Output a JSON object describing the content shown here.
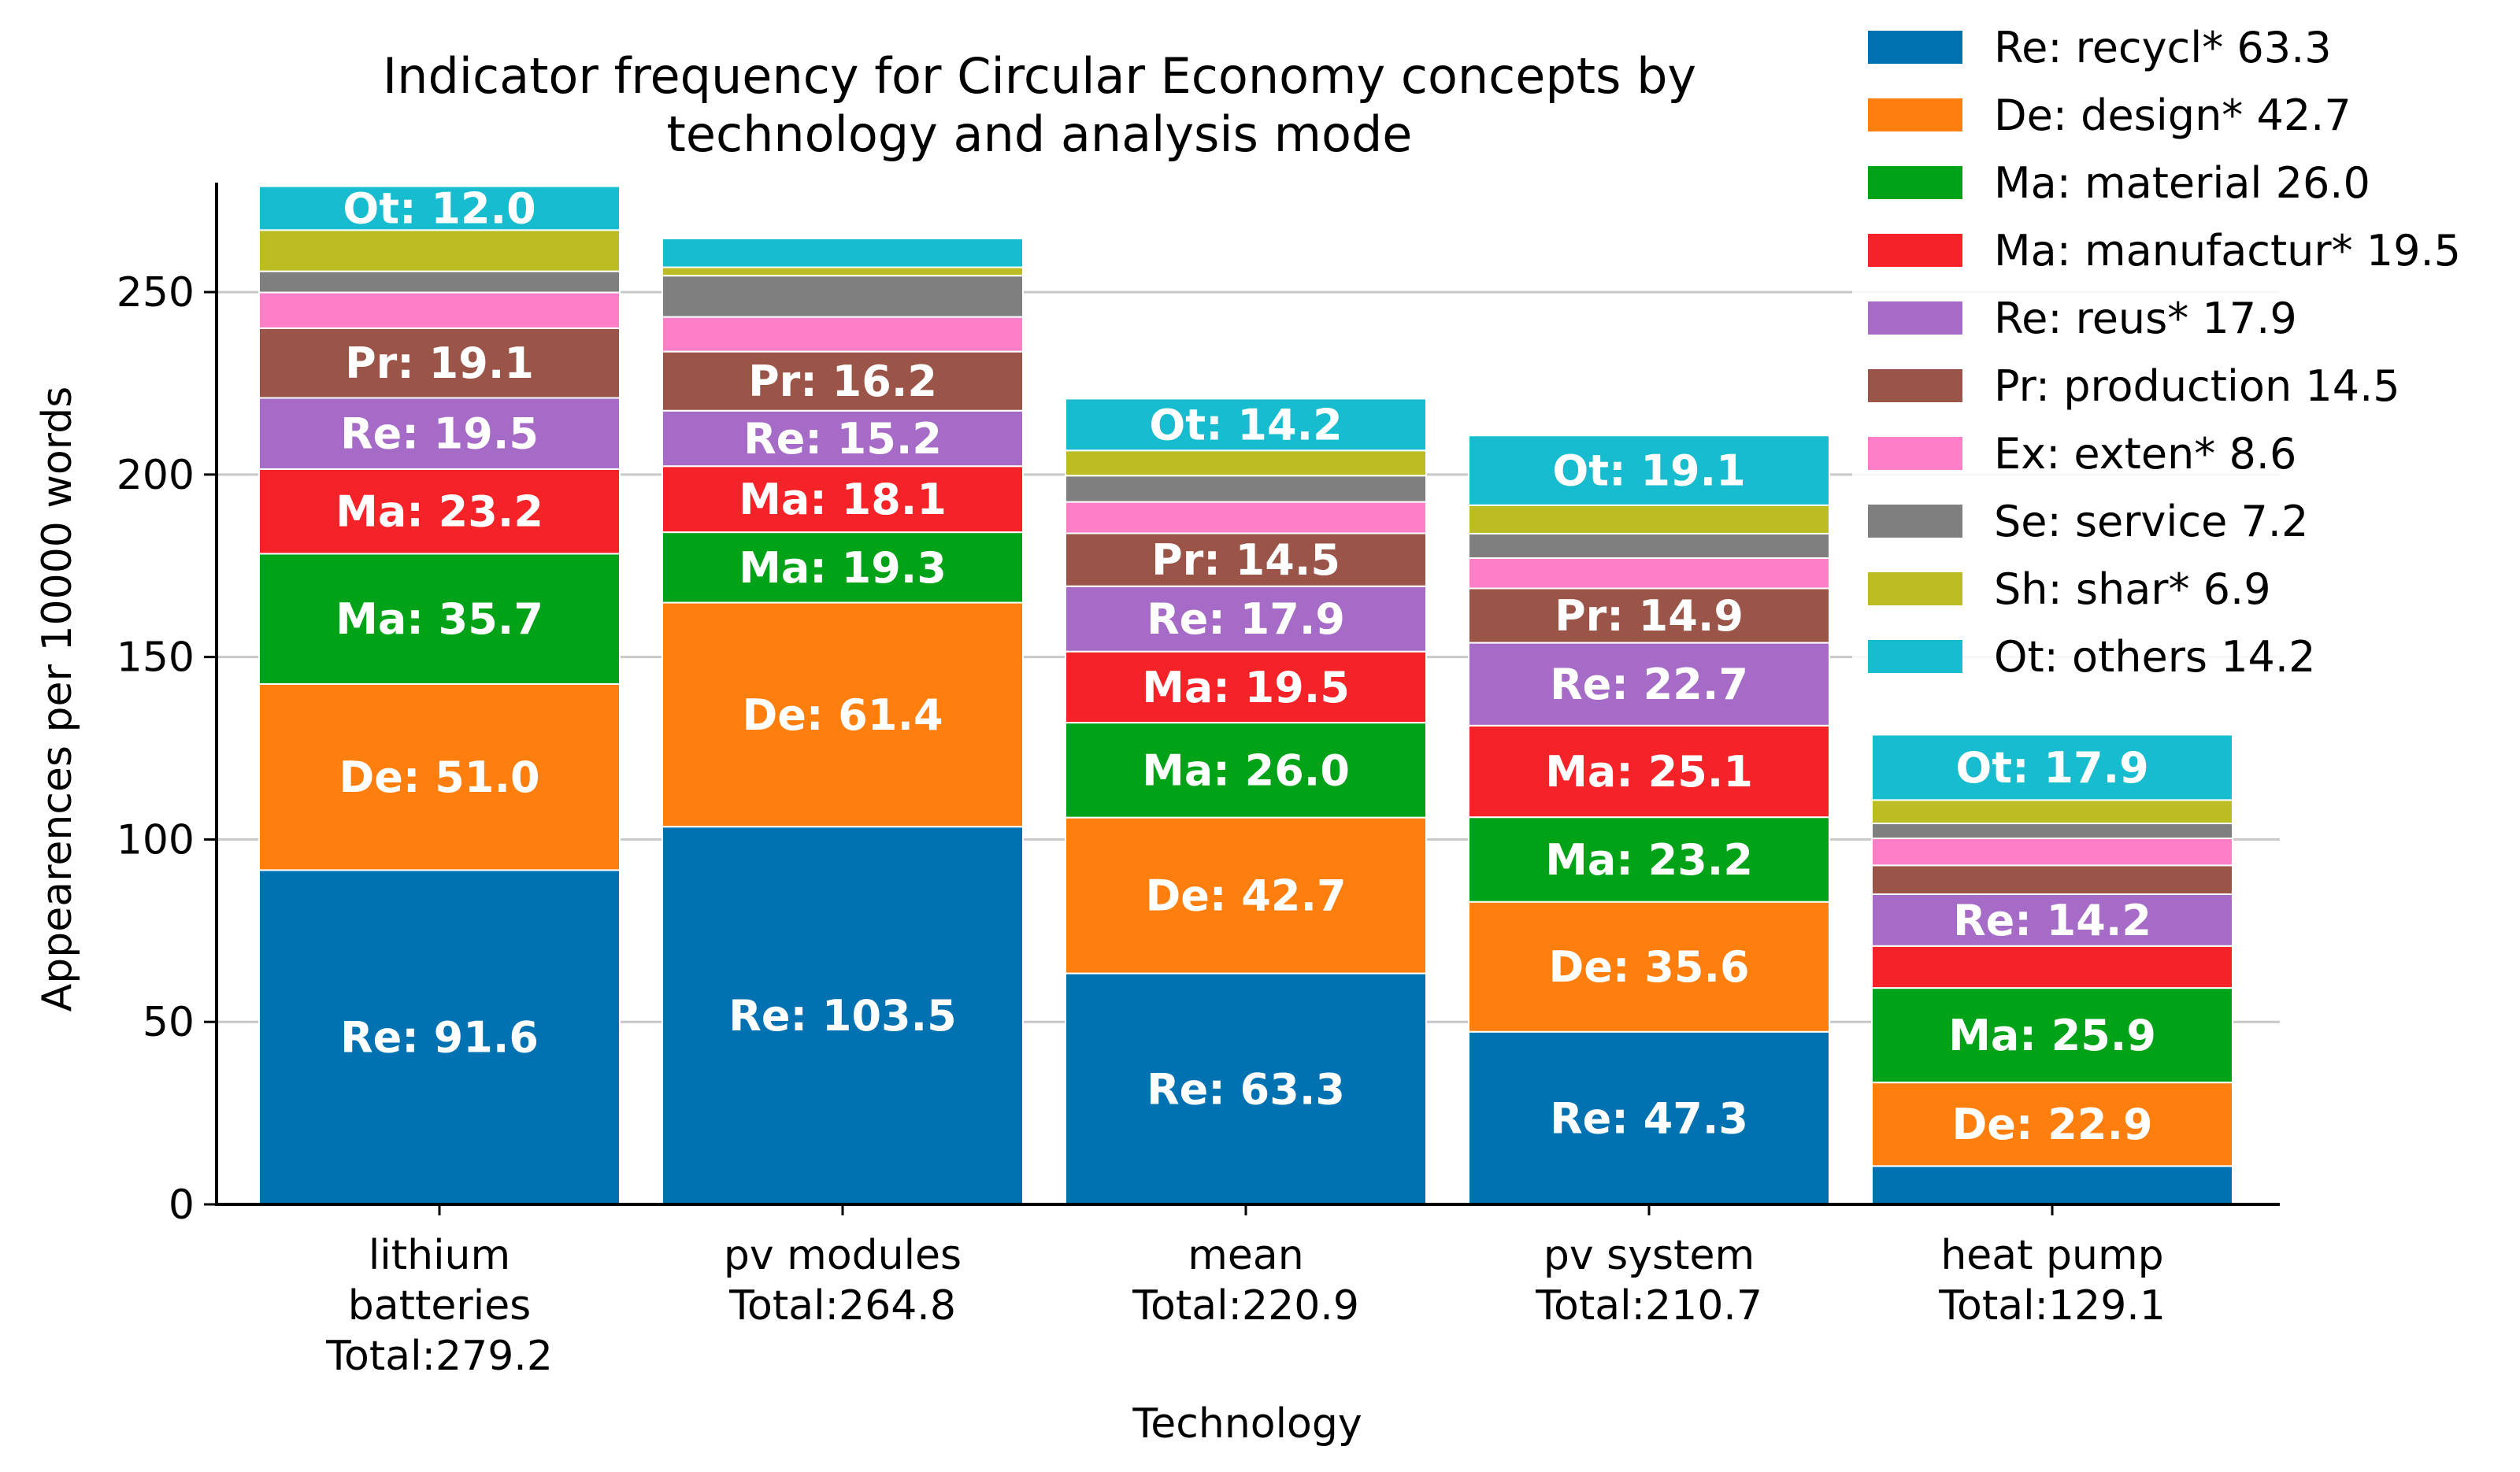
{
  "chart_data": {
    "type": "bar",
    "stacked": true,
    "title_lines": [
      "Indicator frequency for Circular Economy concepts by",
      "technology and analysis mode"
    ],
    "xlabel": "Technology",
    "ylabel": "Appearences per 10000 words",
    "ylim": [
      0,
      280
    ],
    "yticks": [
      0,
      50,
      100,
      150,
      200,
      250
    ],
    "grid": "horizontal",
    "legend_position": "top-right",
    "categories": [
      {
        "name_lines": [
          "lithium",
          "batteries"
        ],
        "total": "Total:279.2"
      },
      {
        "name_lines": [
          "pv modules"
        ],
        "total": "Total:264.8"
      },
      {
        "name_lines": [
          "mean"
        ],
        "total": "Total:220.9"
      },
      {
        "name_lines": [
          "pv system"
        ],
        "total": "Total:210.7"
      },
      {
        "name_lines": [
          "heat pump"
        ],
        "total": "Total:129.1"
      }
    ],
    "series": [
      {
        "abbr": "Re",
        "legend": "Re: recycl* 63.3",
        "color": "#0072b2",
        "values": [
          91.6,
          103.5,
          63.3,
          47.3,
          10.5
        ],
        "labels": [
          "Re: 91.6",
          "Re: 103.5",
          "Re: 63.3",
          "Re: 47.3",
          ""
        ]
      },
      {
        "abbr": "De",
        "legend": "De: design* 42.7",
        "color": "#ff7f0e",
        "values": [
          51.0,
          61.4,
          42.7,
          35.6,
          22.9
        ],
        "labels": [
          "De: 51.0",
          "De: 61.4",
          "De: 42.7",
          "De: 35.6",
          "De: 22.9"
        ]
      },
      {
        "abbr": "Ma",
        "legend": "Ma: material 26.0",
        "color": "#00a318",
        "values": [
          35.7,
          19.3,
          26.0,
          23.2,
          25.9
        ],
        "labels": [
          "Ma: 35.7",
          "Ma: 19.3",
          "Ma: 26.0",
          "Ma: 23.2",
          "Ma: 25.9"
        ]
      },
      {
        "abbr": "Ma",
        "legend": "Ma: manufactur* 19.5",
        "color": "#f52328",
        "values": [
          23.2,
          18.1,
          19.5,
          25.1,
          11.5
        ],
        "labels": [
          "Ma: 23.2",
          "Ma: 18.1",
          "Ma: 19.5",
          "Ma: 25.1",
          ""
        ]
      },
      {
        "abbr": "Re",
        "legend": "Re: reus* 17.9",
        "color": "#a66bc6",
        "values": [
          19.5,
          15.2,
          17.9,
          22.7,
          14.2
        ],
        "labels": [
          "Re: 19.5",
          "Re: 15.2",
          "Re: 17.9",
          "Re: 22.7",
          "Re: 14.2"
        ]
      },
      {
        "abbr": "Pr",
        "legend": "Pr: production 14.5",
        "color": "#9a5548",
        "values": [
          19.1,
          16.2,
          14.5,
          14.9,
          7.9
        ],
        "labels": [
          "Pr: 19.1",
          "Pr: 16.2",
          "Pr: 14.5",
          "Pr: 14.9",
          ""
        ]
      },
      {
        "abbr": "Ex",
        "legend": "Ex: exten* 8.6",
        "color": "#ff7ec8",
        "values": [
          9.8,
          9.5,
          8.6,
          8.3,
          7.4
        ],
        "labels": [
          "",
          "",
          "",
          "",
          ""
        ]
      },
      {
        "abbr": "Se",
        "legend": "Se: service 7.2",
        "color": "#7f7f7f",
        "values": [
          5.8,
          11.3,
          7.2,
          6.7,
          4.1
        ],
        "labels": [
          "",
          "",
          "",
          "",
          ""
        ]
      },
      {
        "abbr": "Sh",
        "legend": "Sh: shar* 6.9",
        "color": "#bcbd22",
        "values": [
          11.3,
          2.3,
          6.9,
          7.8,
          6.4
        ],
        "labels": [
          "",
          "",
          "",
          "",
          ""
        ]
      },
      {
        "abbr": "Ot",
        "legend": "Ot: others 14.2",
        "color": "#17bccf",
        "values": [
          12.0,
          7.9,
          14.2,
          19.1,
          17.9
        ],
        "labels": [
          "Ot: 12.0",
          "",
          "Ot: 14.2",
          "Ot: 19.1",
          "Ot: 17.9"
        ]
      }
    ]
  }
}
